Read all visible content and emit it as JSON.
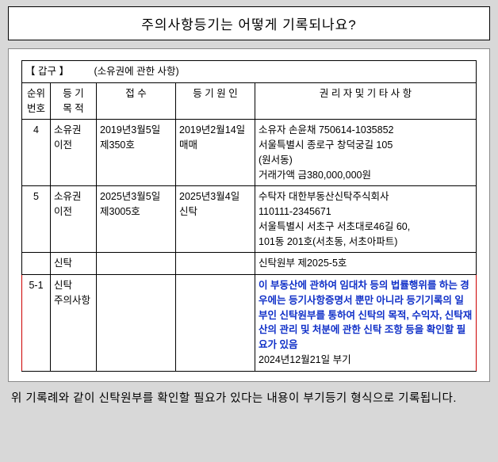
{
  "title": "주의사항등기는 어떻게 기록되나요?",
  "section": {
    "label": "【   갑",
    "label2": "구   】",
    "sub": "(소유권에 관한 사항)"
  },
  "headers": {
    "h1a": "순위",
    "h1b": "번호",
    "h2a": "등 기",
    "h2b": "목 적",
    "h3": "접   수",
    "h4": "등 기 원 인",
    "h5": "권 리 자   및   기 타 사 항"
  },
  "rows": [
    {
      "no": "4",
      "purpose": "소유권\n이전",
      "receipt": "2019년3월5일\n제350호",
      "cause": "2019년2월14일\n매매",
      "rights": "소유자  손윤채   750614-1035852\n  서울특별시  종로구  창덕궁길  105\n  (원서동)\n거래가액 금380,000,000원"
    },
    {
      "no": "5",
      "purpose": "소유권\n이전",
      "receipt": "2025년3월5일\n제3005호",
      "cause": "2025년3월4일\n신탁",
      "rights": "수탁자  대한부동산신탁주식회사\n  110111-2345671\n  서울특별시 서초구 서초대로46길 60,\n  101동 201호(서초동, 서초아파트)"
    },
    {
      "no": "",
      "purpose": "신탁",
      "receipt": "",
      "cause": "",
      "rights": "신탁원부   제2025-5호"
    }
  ],
  "hlRow": {
    "no": "5-1",
    "purpose": "신탁\n주의사항",
    "rights_blue": "이 부동산에 관하여 임대차 등의 법률행위를 하는 경우에는 등기사항증명서 뿐만 아니라 등기기록의 일부인 신탁원부를 통하여 신탁의 목적, 수익자, 신탁재산의 관리 및 처분에 관한 신탁 조항 등을 확인할 필요가 있음",
    "rights_date": "2024년12월21일 부기"
  },
  "footer": "위 기록례와 같이 신탁원부를 확인할 필요가 있다는 내용이 부기등기 형식으로 기록됩니다."
}
